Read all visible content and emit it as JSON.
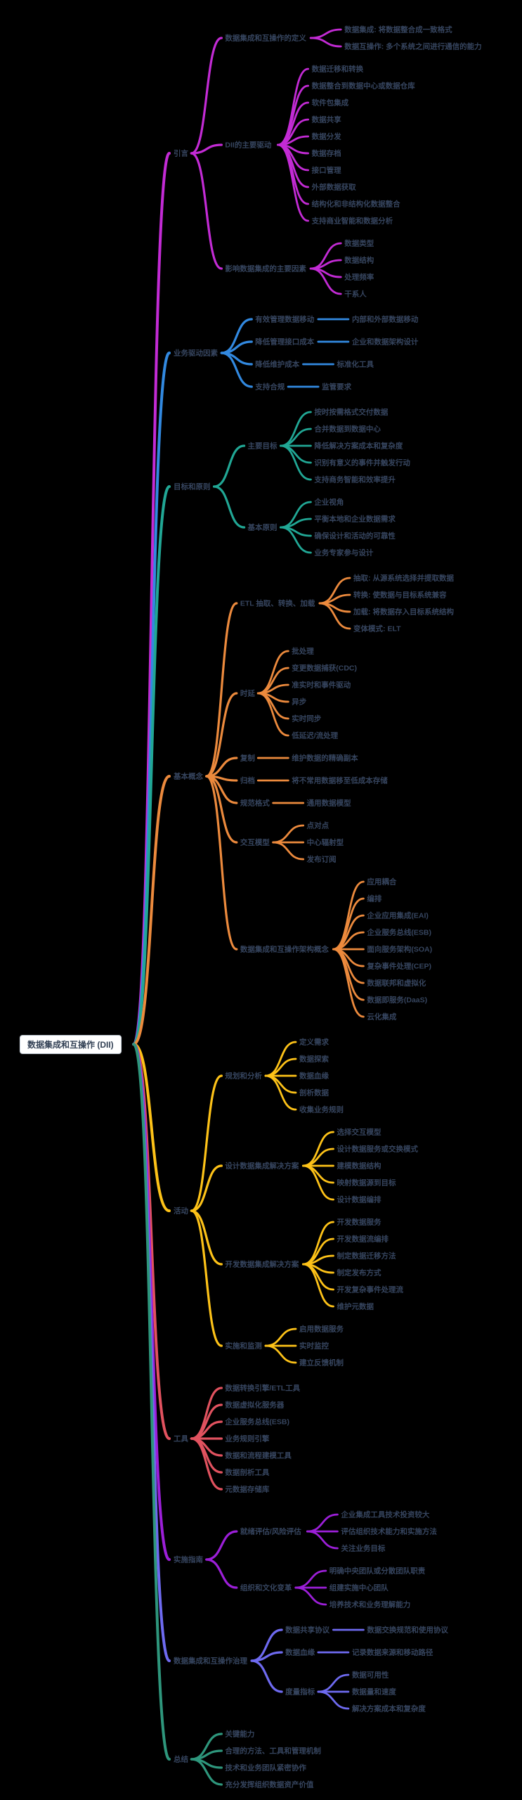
{
  "root": {
    "label": "数据集成和互操作 (DII)"
  },
  "theme": {
    "background": "#000000",
    "node_text_color": "#36455f",
    "root_bg": "#ffffff",
    "root_text_color": "#334155",
    "root_border_color": "#c9d2dc"
  },
  "branches": [
    {
      "label": "引言",
      "color": "#c32bd5",
      "children": [
        {
          "label": "数据集成和互操作的定义",
          "children": [
            {
              "label": "数据集成: 将数据整合成一致格式"
            },
            {
              "label": "数据互操作: 多个系统之间进行通信的能力"
            }
          ]
        },
        {
          "label": "DII的主要驱动",
          "children": [
            {
              "label": "数据迁移和转换"
            },
            {
              "label": "数据整合到数据中心或数据仓库"
            },
            {
              "label": "软件包集成"
            },
            {
              "label": "数据共享"
            },
            {
              "label": "数据分发"
            },
            {
              "label": "数据存档"
            },
            {
              "label": "接口管理"
            },
            {
              "label": "外部数据获取"
            },
            {
              "label": "结构化和非结构化数据整合"
            },
            {
              "label": "支持商业智能和数据分析"
            }
          ]
        },
        {
          "label": "影响数据集成的主要因素",
          "children": [
            {
              "label": "数据类型"
            },
            {
              "label": "数据结构"
            },
            {
              "label": "处理频率"
            },
            {
              "label": "干系人"
            }
          ]
        }
      ]
    },
    {
      "label": "业务驱动因素",
      "color": "#3289e0",
      "children": [
        {
          "label": "有效管理数据移动",
          "children": [
            {
              "label": "内部和外部数据移动"
            }
          ]
        },
        {
          "label": "降低管理接口成本",
          "children": [
            {
              "label": "企业和数据架构设计"
            }
          ]
        },
        {
          "label": "降低维护成本",
          "children": [
            {
              "label": "标准化工具"
            }
          ]
        },
        {
          "label": "支持合规",
          "children": [
            {
              "label": "监管要求"
            }
          ]
        }
      ]
    },
    {
      "label": "目标和原则",
      "color": "#21a795",
      "children": [
        {
          "label": "主要目标",
          "children": [
            {
              "label": "按时按需格式交付数据"
            },
            {
              "label": "合并数据到数据中心"
            },
            {
              "label": "降低解决方案成本和复杂度"
            },
            {
              "label": "识别有意义的事件并触发行动"
            },
            {
              "label": "支持商务智能和效率提升"
            }
          ]
        },
        {
          "label": "基本原则",
          "children": [
            {
              "label": "企业视角"
            },
            {
              "label": "平衡本地和企业数据需求"
            },
            {
              "label": "确保设计和活动的可靠性"
            },
            {
              "label": "业务专家参与设计"
            }
          ]
        }
      ]
    },
    {
      "label": "基本概念",
      "color": "#ec8a3d",
      "children": [
        {
          "label": "ETL 抽取、转换、加载",
          "children": [
            {
              "label": "抽取: 从源系统选择并提取数据"
            },
            {
              "label": "转换: 使数据与目标系统兼容"
            },
            {
              "label": "加载: 将数据存入目标系统结构"
            },
            {
              "label": "变体模式: ELT"
            }
          ]
        },
        {
          "label": "时延",
          "children": [
            {
              "label": "批处理"
            },
            {
              "label": "变更数据捕获(CDC)"
            },
            {
              "label": "准实时和事件驱动"
            },
            {
              "label": "异步"
            },
            {
              "label": "实时同步"
            },
            {
              "label": "低延迟/流处理"
            }
          ]
        },
        {
          "label": "复制",
          "children": [
            {
              "label": "维护数据的精确副本"
            }
          ]
        },
        {
          "label": "归档",
          "children": [
            {
              "label": "将不常用数据移至低成本存储"
            }
          ]
        },
        {
          "label": "规范格式",
          "children": [
            {
              "label": "通用数据模型"
            }
          ]
        },
        {
          "label": "交互模型",
          "children": [
            {
              "label": "点对点"
            },
            {
              "label": "中心辐射型"
            },
            {
              "label": "发布订阅"
            }
          ]
        },
        {
          "label": "数据集成和互操作架构概念",
          "children": [
            {
              "label": "应用耦合"
            },
            {
              "label": "编排"
            },
            {
              "label": "企业应用集成(EAI)"
            },
            {
              "label": "企业服务总线(ESB)"
            },
            {
              "label": "面向服务架构(SOA)"
            },
            {
              "label": "复杂事件处理(CEP)"
            },
            {
              "label": "数据联邦和虚拟化"
            },
            {
              "label": "数据即服务(DaaS)"
            },
            {
              "label": "云化集成"
            }
          ]
        }
      ]
    },
    {
      "label": "活动",
      "color": "#fdc218",
      "children": [
        {
          "label": "规划和分析",
          "children": [
            {
              "label": "定义需求"
            },
            {
              "label": "数据探索"
            },
            {
              "label": "数据血缘"
            },
            {
              "label": "剖析数据"
            },
            {
              "label": "收集业务规则"
            }
          ]
        },
        {
          "label": "设计数据集成解决方案",
          "children": [
            {
              "label": "选择交互模型"
            },
            {
              "label": "设计数据服务或交换模式"
            },
            {
              "label": "建模数据结构"
            },
            {
              "label": "映射数据源到目标"
            },
            {
              "label": "设计数据编排"
            }
          ]
        },
        {
          "label": "开发数据集成解决方案",
          "children": [
            {
              "label": "开发数据服务"
            },
            {
              "label": "开发数据流编排"
            },
            {
              "label": "制定数据迁移方法"
            },
            {
              "label": "制定发布方式"
            },
            {
              "label": "开发复杂事件处理流"
            },
            {
              "label": "维护元数据"
            }
          ]
        },
        {
          "label": "实施和监测",
          "children": [
            {
              "label": "启用数据服务"
            },
            {
              "label": "实时监控"
            },
            {
              "label": "建立反馈机制"
            }
          ]
        }
      ]
    },
    {
      "label": "工具",
      "color": "#e1525f",
      "children": [
        {
          "label": "数据转换引擎/ETL工具"
        },
        {
          "label": "数据虚拟化服务器"
        },
        {
          "label": "企业服务总线(ESB)"
        },
        {
          "label": "业务规则引擎"
        },
        {
          "label": "数据和流程建模工具"
        },
        {
          "label": "数据剖析工具"
        },
        {
          "label": "元数据存储库"
        }
      ]
    },
    {
      "label": "实施指南",
      "color": "#9c1fd8",
      "children": [
        {
          "label": "就绪评估/风险评估",
          "children": [
            {
              "label": "企业集成工具技术投资较大"
            },
            {
              "label": "评估组织技术能力和实施方法"
            },
            {
              "label": "关注业务目标"
            }
          ]
        },
        {
          "label": "组织和文化变革",
          "children": [
            {
              "label": "明确中央团队或分散团队职责"
            },
            {
              "label": "组建实施中心团队"
            },
            {
              "label": "培养技术和业务理解能力"
            }
          ]
        }
      ]
    },
    {
      "label": "数据集成和互操作治理",
      "color": "#6e6af0",
      "children": [
        {
          "label": "数据共享协议",
          "children": [
            {
              "label": "数据交换规范和使用协议"
            }
          ]
        },
        {
          "label": "数据血缘",
          "children": [
            {
              "label": "记录数据来源和移动路径"
            }
          ]
        },
        {
          "label": "度量指标",
          "children": [
            {
              "label": "数据可用性"
            },
            {
              "label": "数据量和速度"
            },
            {
              "label": "解决方案成本和复杂度"
            }
          ]
        }
      ]
    },
    {
      "label": "总结",
      "color": "#2e967c",
      "children": [
        {
          "label": "关键能力"
        },
        {
          "label": "合理的方法、工具和管理机制"
        },
        {
          "label": "技术和业务团队紧密协作"
        },
        {
          "label": "充分发挥组织数据资产价值"
        }
      ]
    }
  ]
}
